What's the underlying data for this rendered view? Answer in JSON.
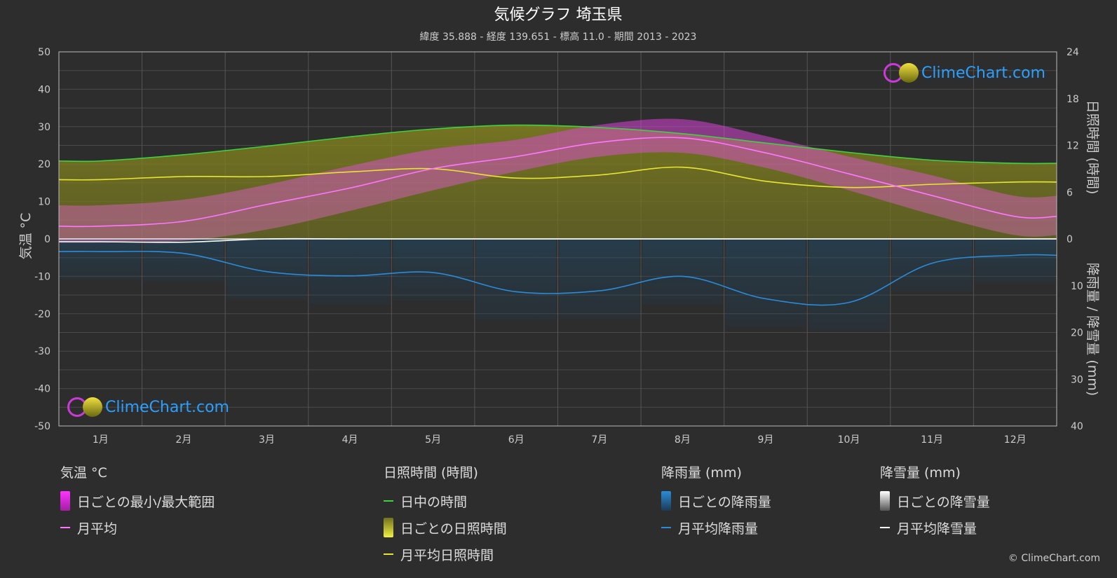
{
  "chart_data": {
    "type": "line",
    "title": "気候グラフ 埼玉県",
    "subtitle": "緯度 35.888 - 経度 139.651 - 標高 11.0 - 期間 2013 - 2023",
    "categories": [
      "1月",
      "2月",
      "3月",
      "4月",
      "5月",
      "6月",
      "7月",
      "8月",
      "9月",
      "10月",
      "11月",
      "12月"
    ],
    "left_axis": {
      "label": "気温 °C",
      "ticks": [
        50,
        40,
        30,
        20,
        10,
        0,
        -10,
        -20,
        -30,
        -40,
        -50
      ],
      "range": [
        -50,
        50
      ]
    },
    "right_axis_top": {
      "label": "日照時間 (時間)",
      "ticks": [
        24,
        18,
        12,
        6,
        0
      ],
      "range": [
        0,
        24
      ]
    },
    "right_axis_bottom": {
      "label": "降雨量 / 降雪量 (mm)",
      "ticks": [
        10,
        20,
        30,
        40
      ],
      "range": [
        0,
        40
      ]
    },
    "series": [
      {
        "name": "日中の時間",
        "axis": "sunshine",
        "color": "#3fd23f",
        "values": [
          10.0,
          10.8,
          11.9,
          13.1,
          14.1,
          14.6,
          14.3,
          13.5,
          12.3,
          11.1,
          10.1,
          9.7
        ]
      },
      {
        "name": "月平均日照時間",
        "axis": "sunshine",
        "color": "#e6e632",
        "values": [
          7.6,
          8.0,
          8.0,
          8.6,
          9.0,
          7.8,
          8.2,
          9.2,
          7.4,
          6.6,
          7.0,
          7.3
        ]
      },
      {
        "name": "月平均",
        "axis": "temperature",
        "color": "#ff77ff",
        "values": [
          3.4,
          4.7,
          9.2,
          13.6,
          18.8,
          22.0,
          25.8,
          27.0,
          23.0,
          17.4,
          11.6,
          6.0
        ]
      },
      {
        "name": "日ごとの最小/最大範囲",
        "axis": "temperature",
        "color": "#e23ce2",
        "min": [
          -1.0,
          -0.5,
          2.5,
          7.5,
          13.0,
          18.0,
          22.0,
          23.0,
          19.0,
          13.0,
          6.5,
          1.0
        ],
        "max": [
          9.0,
          10.5,
          14.5,
          19.5,
          24.0,
          26.5,
          30.5,
          32.0,
          27.5,
          22.0,
          17.0,
          11.5
        ]
      },
      {
        "name": "月平均降雨量",
        "axis": "precip",
        "color": "#2a8cd8",
        "values": [
          2.7,
          3.1,
          7.0,
          7.9,
          7.2,
          11.3,
          11.1,
          8.0,
          12.8,
          13.6,
          5.2,
          3.5
        ]
      },
      {
        "name": "月平均降雪量",
        "axis": "precip",
        "color": "#ffffff",
        "values": [
          0.6,
          0.7,
          0.0,
          0.0,
          0.0,
          0.0,
          0.0,
          0.0,
          0.0,
          0.0,
          0.0,
          0.0
        ]
      }
    ],
    "grid": true
  },
  "legend": {
    "temp": {
      "title": "気温 °C",
      "range": "日ごとの最小/最大範囲",
      "avg": "月平均"
    },
    "sun": {
      "title": "日照時間 (時間)",
      "daylight": "日中の時間",
      "daily": "日ごとの日照時間",
      "avg": "月平均日照時間"
    },
    "rain": {
      "title": "降雨量 (mm)",
      "daily": "日ごとの降雨量",
      "avg": "月平均降雨量"
    },
    "snow": {
      "title": "降雪量 (mm)",
      "daily": "日ごとの降雪量",
      "avg": "月平均降雪量"
    }
  },
  "watermark": "ClimeChart.com",
  "copyright": "© ClimeChart.com"
}
